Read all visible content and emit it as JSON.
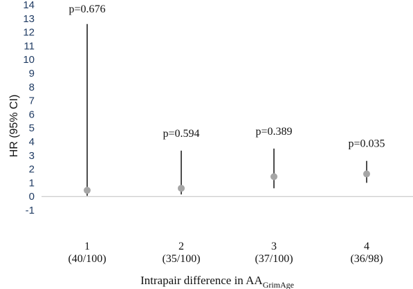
{
  "chart_data": {
    "type": "scatter",
    "ylabel": "HR (95% CI)",
    "xlabel": {
      "main": "Intrapair difference in AA",
      "subscript": "GrimAge"
    },
    "ylim": [
      -1,
      14
    ],
    "yticks": [
      -1,
      0,
      1,
      2,
      3,
      4,
      5,
      6,
      7,
      8,
      9,
      10,
      11,
      12,
      13,
      14
    ],
    "grid": false,
    "categories": [
      {
        "label": "1",
        "sub": "(40/100)"
      },
      {
        "label": "2",
        "sub": "(35/100)"
      },
      {
        "label": "3",
        "sub": "(37/100)"
      },
      {
        "label": "4",
        "sub": "(36/98)"
      }
    ],
    "points": [
      {
        "hr": 0.45,
        "lower": 0.05,
        "upper": 12.6,
        "pvalue": "p=0.676"
      },
      {
        "hr": 0.6,
        "lower": 0.15,
        "upper": 3.35,
        "pvalue": "p=0.594"
      },
      {
        "hr": 1.45,
        "lower": 0.6,
        "upper": 3.5,
        "pvalue": "p=0.389"
      },
      {
        "hr": 1.65,
        "lower": 1.0,
        "upper": 2.6,
        "pvalue": "p=0.035"
      }
    ],
    "colors": {
      "marker": "#a6a6a6",
      "whisker": "#111111",
      "axis": "#bfbfbf",
      "tick_text": "#1f3b63"
    }
  }
}
